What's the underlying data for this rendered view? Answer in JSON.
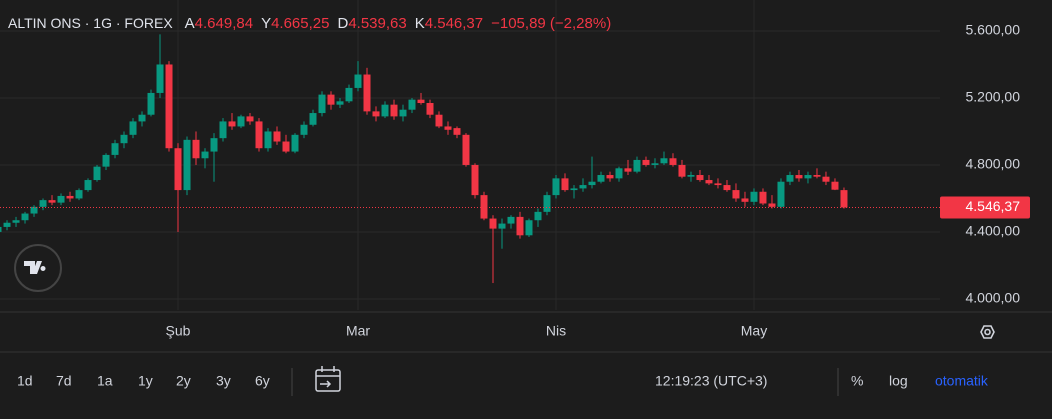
{
  "chart_data": {
    "type": "candlestick",
    "title": "ALTIN ONS · 1G · FOREX",
    "ohlc_header": [
      {
        "label": "A",
        "value": "4.649,84"
      },
      {
        "label": "Y",
        "value": "4.665,25"
      },
      {
        "label": "D",
        "value": "4.539,63"
      },
      {
        "label": "K",
        "value": "4.546,37"
      }
    ],
    "change": "−105,89 (−2,28%)",
    "up_color": "#089981",
    "down_color": "#f23645",
    "ohlc": [
      [
        4400,
        4440,
        4380,
        4430
      ],
      [
        4430,
        4470,
        4410,
        4455
      ],
      [
        4455,
        4490,
        4430,
        4470
      ],
      [
        4470,
        4520,
        4450,
        4510
      ],
      [
        4510,
        4560,
        4490,
        4550
      ],
      [
        4550,
        4600,
        4530,
        4590
      ],
      [
        4590,
        4620,
        4560,
        4575
      ],
      [
        4575,
        4630,
        4560,
        4615
      ],
      [
        4615,
        4640,
        4580,
        4600
      ],
      [
        4600,
        4660,
        4590,
        4650
      ],
      [
        4650,
        4720,
        4640,
        4710
      ],
      [
        4710,
        4800,
        4700,
        4790
      ],
      [
        4790,
        4870,
        4770,
        4860
      ],
      [
        4860,
        4950,
        4840,
        4930
      ],
      [
        4930,
        5000,
        4900,
        4980
      ],
      [
        4980,
        5080,
        4960,
        5060
      ],
      [
        5060,
        5120,
        5030,
        5100
      ],
      [
        5100,
        5250,
        5090,
        5230
      ],
      [
        5230,
        5580,
        5200,
        5400
      ],
      [
        5400,
        5420,
        4880,
        4900
      ],
      [
        4900,
        4930,
        4400,
        4650
      ],
      [
        4650,
        4970,
        4620,
        4950
      ],
      [
        4950,
        5000,
        4800,
        4840
      ],
      [
        4840,
        4900,
        4780,
        4880
      ],
      [
        4880,
        4990,
        4700,
        4960
      ],
      [
        4960,
        5080,
        4940,
        5060
      ],
      [
        5060,
        5110,
        5010,
        5030
      ],
      [
        5030,
        5100,
        5020,
        5090
      ],
      [
        5090,
        5110,
        5040,
        5060
      ],
      [
        5060,
        5080,
        4880,
        4900
      ],
      [
        4900,
        5020,
        4880,
        5000
      ],
      [
        5000,
        5030,
        4920,
        4940
      ],
      [
        4940,
        4980,
        4870,
        4880
      ],
      [
        4880,
        4990,
        4870,
        4980
      ],
      [
        4980,
        5060,
        4960,
        5040
      ],
      [
        5040,
        5130,
        5030,
        5110
      ],
      [
        5110,
        5240,
        5090,
        5220
      ],
      [
        5220,
        5240,
        5130,
        5160
      ],
      [
        5160,
        5200,
        5140,
        5180
      ],
      [
        5180,
        5280,
        5170,
        5260
      ],
      [
        5260,
        5420,
        5240,
        5340
      ],
      [
        5340,
        5380,
        5100,
        5120
      ],
      [
        5120,
        5150,
        5060,
        5090
      ],
      [
        5090,
        5180,
        5080,
        5160
      ],
      [
        5160,
        5190,
        5070,
        5090
      ],
      [
        5090,
        5160,
        5060,
        5130
      ],
      [
        5130,
        5200,
        5110,
        5190
      ],
      [
        5190,
        5230,
        5160,
        5170
      ],
      [
        5170,
        5190,
        5080,
        5100
      ],
      [
        5100,
        5120,
        5020,
        5030
      ],
      [
        5030,
        5060,
        4980,
        5010
      ],
      [
        5020,
        5030,
        4960,
        4980
      ],
      [
        4980,
        4990,
        4790,
        4800
      ],
      [
        4800,
        4810,
        4600,
        4620
      ],
      [
        4620,
        4640,
        4470,
        4480
      ],
      [
        4480,
        4500,
        4095,
        4420
      ],
      [
        4420,
        4480,
        4300,
        4450
      ],
      [
        4450,
        4500,
        4420,
        4490
      ],
      [
        4490,
        4520,
        4360,
        4380
      ],
      [
        4380,
        4480,
        4370,
        4470
      ],
      [
        4470,
        4540,
        4430,
        4520
      ],
      [
        4520,
        4640,
        4500,
        4620
      ],
      [
        4620,
        4740,
        4600,
        4720
      ],
      [
        4720,
        4750,
        4640,
        4650
      ],
      [
        4650,
        4680,
        4600,
        4660
      ],
      [
        4660,
        4720,
        4640,
        4680
      ],
      [
        4680,
        4850,
        4660,
        4700
      ],
      [
        4700,
        4760,
        4690,
        4740
      ],
      [
        4740,
        4760,
        4700,
        4720
      ],
      [
        4720,
        4790,
        4700,
        4780
      ],
      [
        4780,
        4830,
        4740,
        4760
      ],
      [
        4760,
        4850,
        4750,
        4830
      ],
      [
        4830,
        4850,
        4790,
        4800
      ],
      [
        4800,
        4840,
        4780,
        4810
      ],
      [
        4810,
        4880,
        4800,
        4840
      ],
      [
        4840,
        4870,
        4790,
        4800
      ],
      [
        4800,
        4830,
        4720,
        4730
      ],
      [
        4730,
        4760,
        4700,
        4740
      ],
      [
        4740,
        4770,
        4700,
        4710
      ],
      [
        4710,
        4740,
        4680,
        4690
      ],
      [
        4690,
        4720,
        4660,
        4680
      ],
      [
        4680,
        4710,
        4640,
        4650
      ],
      [
        4650,
        4690,
        4580,
        4600
      ],
      [
        4600,
        4640,
        4550,
        4580
      ],
      [
        4580,
        4660,
        4560,
        4640
      ],
      [
        4640,
        4660,
        4560,
        4570
      ],
      [
        4570,
        4620,
        4540,
        4550
      ],
      [
        4550,
        4720,
        4540,
        4700
      ],
      [
        4700,
        4760,
        4680,
        4740
      ],
      [
        4740,
        4770,
        4700,
        4720
      ],
      [
        4720,
        4760,
        4690,
        4740
      ],
      [
        4740,
        4780,
        4720,
        4730
      ],
      [
        4730,
        4760,
        4680,
        4700
      ],
      [
        4700,
        4720,
        4650,
        4652.26
      ],
      [
        4649.84,
        4665.25,
        4539.63,
        4546.37
      ]
    ],
    "last_price": {
      "value": 4546.37,
      "label": "4.546,37"
    },
    "ylim": [
      3934,
      5785
    ],
    "yticks": [
      {
        "value": 4000,
        "label": "4.000,00"
      },
      {
        "value": 4400,
        "label": "4.400,00"
      },
      {
        "value": 4800,
        "label": "4.800,00"
      },
      {
        "value": 5200,
        "label": "5.200,00"
      },
      {
        "value": 5600,
        "label": "5.600,00"
      }
    ],
    "xlim": [
      0.22,
      104.67
    ],
    "xticks": [
      {
        "value": 20,
        "label": "Şub"
      },
      {
        "value": 40,
        "label": "Mar"
      },
      {
        "value": 62,
        "label": "Nis"
      },
      {
        "value": 84,
        "label": "May"
      }
    ],
    "grid": true
  },
  "toolbar": {
    "ranges": [
      "1d",
      "7d",
      "1a",
      "1y",
      "2y",
      "3y",
      "6y"
    ],
    "time": "12:19:23 (UTC+3)",
    "percent": "%",
    "log": "log",
    "auto": "otomatik"
  }
}
